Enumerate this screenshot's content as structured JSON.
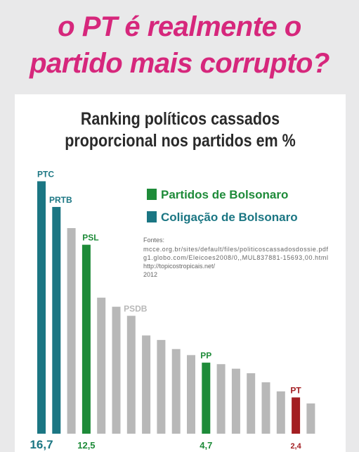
{
  "post": {
    "headline_line1": "o PT é realmente o",
    "headline_line2": "partido mais corrupto?"
  },
  "colors": {
    "headline": "#d6277c",
    "bolsonaro_party": "#1e8b39",
    "bolsonaro_coalition": "#1b7683",
    "other": "#b8b8b8",
    "pt": "#a31e22"
  },
  "legend": {
    "party": "Partidos de Bolsonaro",
    "coalition": "Coligação de Bolsonaro"
  },
  "sources": {
    "heading": "Fontes:",
    "lines": [
      "mcce.org.br/sites/default/files/politicoscassadosdossie.pdf",
      "g1.globo.com/Eleicoes2008/0,,MUL837881-15693,00.html",
      "http://topicostropicais.net/",
      "2012"
    ]
  },
  "chart_data": {
    "type": "bar",
    "title": "Ranking políticos cassados proporcional nos partidos em %",
    "title_lines": [
      "Ranking políticos cassados",
      "proporcional nos partidos em %"
    ],
    "ylabel": "",
    "ylim": [
      0,
      17
    ],
    "grid": false,
    "legend_position": "top-right",
    "bars": [
      {
        "label": "PTC",
        "value": 16.7,
        "group": "coalition",
        "value_label": "16,7"
      },
      {
        "label": "PRTB",
        "value": 15.0,
        "group": "coalition"
      },
      {
        "label": "",
        "value": 13.6,
        "group": "other"
      },
      {
        "label": "PSL",
        "value": 12.5,
        "group": "party",
        "value_label": "12,5"
      },
      {
        "label": "",
        "value": 9.0,
        "group": "other"
      },
      {
        "label": "",
        "value": 8.4,
        "group": "other"
      },
      {
        "label": "PSDB",
        "value": 7.8,
        "group": "other"
      },
      {
        "label": "",
        "value": 6.5,
        "group": "other"
      },
      {
        "label": "",
        "value": 6.2,
        "group": "other"
      },
      {
        "label": "",
        "value": 5.6,
        "group": "other"
      },
      {
        "label": "",
        "value": 5.2,
        "group": "other"
      },
      {
        "label": "PP",
        "value": 4.7,
        "group": "party",
        "value_label": "4,7"
      },
      {
        "label": "",
        "value": 4.6,
        "group": "other"
      },
      {
        "label": "",
        "value": 4.3,
        "group": "other"
      },
      {
        "label": "",
        "value": 4.0,
        "group": "other"
      },
      {
        "label": "",
        "value": 3.4,
        "group": "other"
      },
      {
        "label": "",
        "value": 2.8,
        "group": "other"
      },
      {
        "label": "PT",
        "value": 2.4,
        "group": "pt",
        "value_label": "2,4"
      },
      {
        "label": "",
        "value": 2.0,
        "group": "other"
      }
    ]
  }
}
